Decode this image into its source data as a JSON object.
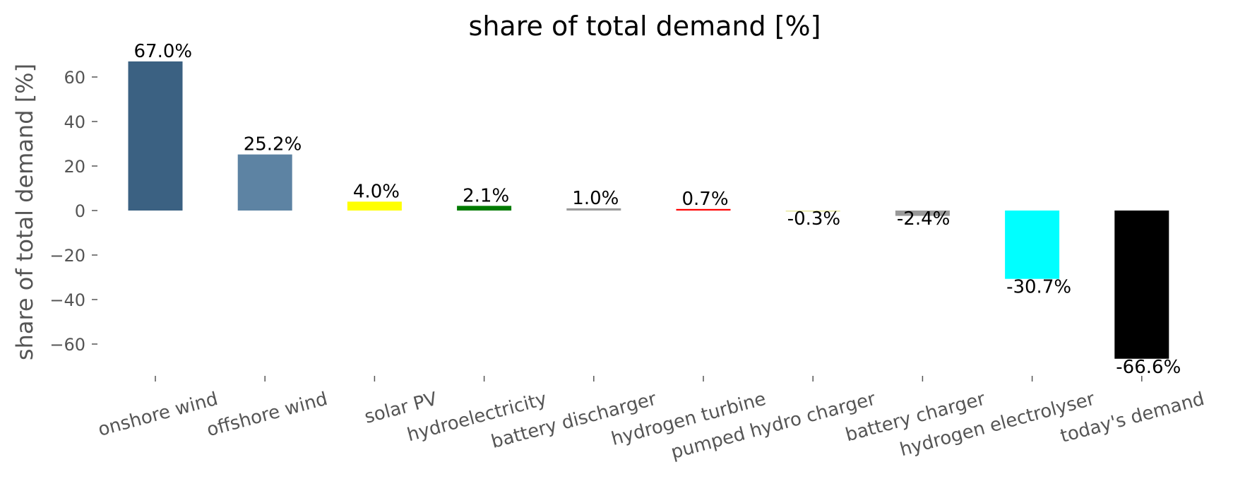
{
  "chart_data": {
    "type": "bar",
    "title": "share of total demand [%]",
    "xlabel": "",
    "ylabel": "share of total demand [%]",
    "ylim": [
      -75,
      73
    ],
    "yticks": [
      60,
      40,
      20,
      0,
      -20,
      -40,
      -60
    ],
    "ytick_labels": [
      "60",
      "40",
      "20",
      "0",
      "−20",
      "−40",
      "−60"
    ],
    "grid": false,
    "legend": "none",
    "categories": [
      "onshore wind",
      "offshore wind",
      "solar PV",
      "hydroelectricity",
      "battery discharger",
      "hydrogen turbine",
      "pumped hydro charger",
      "battery charger",
      "hydrogen electrolyser",
      "today's demand"
    ],
    "values": [
      67.0,
      25.2,
      4.0,
      2.1,
      1.0,
      0.7,
      -0.3,
      -2.4,
      -30.7,
      -66.6
    ],
    "data_labels": [
      "67.0%",
      "25.2%",
      "4.0%",
      "2.1%",
      "1.0%",
      "0.7%",
      "-0.3%",
      "-2.4%",
      "-30.7%",
      "-66.6%"
    ],
    "colors": [
      "#3b6182",
      "#5d83a3",
      "#ffff00",
      "#007a00",
      "#999999",
      "#ff0000",
      "#e8e8a0",
      "#999999",
      "#00ffff",
      "#000000"
    ]
  }
}
